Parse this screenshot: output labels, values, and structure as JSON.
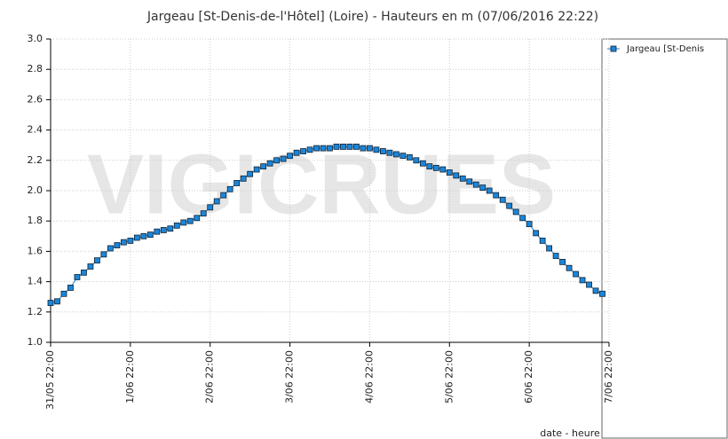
{
  "chart_data": {
    "type": "line",
    "title": "Jargeau [St-Denis-de-l'Hôtel] (Loire) - Hauteurs en m (07/06/2016 22:22)",
    "watermark": "VIGICRUES",
    "xlabel": "date - heure",
    "xlim": [
      0,
      168
    ],
    "xticks": [
      {
        "value": 0,
        "label": "31/05 22:00"
      },
      {
        "value": 24,
        "label": "1/06 22:00"
      },
      {
        "value": 48,
        "label": "2/06 22:00"
      },
      {
        "value": 72,
        "label": "3/06 22:00"
      },
      {
        "value": 96,
        "label": "4/06 22:00"
      },
      {
        "value": 120,
        "label": "5/06 22:00"
      },
      {
        "value": 144,
        "label": "6/06 22:00"
      },
      {
        "value": 168,
        "label": "7/06 22:00"
      }
    ],
    "ylim": [
      1,
      3
    ],
    "yticks": [
      {
        "value": 1,
        "label": "1.0"
      },
      1.2,
      1.4,
      1.6,
      1.8,
      {
        "value": 2,
        "label": "2.0"
      },
      2.2,
      2.4,
      2.6,
      2.8,
      {
        "value": 3,
        "label": "3.0"
      }
    ],
    "grid": true,
    "legend": "top-right",
    "x": [
      0,
      2,
      4,
      6,
      8,
      10,
      12,
      14,
      16,
      18,
      20,
      22,
      24,
      26,
      28,
      30,
      32,
      34,
      36,
      38,
      40,
      42,
      44,
      46,
      48,
      50,
      52,
      54,
      56,
      58,
      60,
      62,
      64,
      66,
      68,
      70,
      72,
      74,
      76,
      78,
      80,
      82,
      84,
      86,
      88,
      90,
      92,
      94,
      96,
      98,
      100,
      102,
      104,
      106,
      108,
      110,
      112,
      114,
      116,
      118,
      120,
      122,
      124,
      126,
      128,
      130,
      132,
      134,
      136,
      138,
      140,
      142,
      144,
      146,
      148,
      150,
      152,
      154,
      156,
      158,
      160,
      162,
      164,
      166
    ],
    "series": [
      {
        "name": "Jargeau [St-Denis",
        "color": "#1c86d9",
        "values": [
          1.26,
          1.27,
          1.32,
          1.36,
          1.43,
          1.46,
          1.5,
          1.54,
          1.58,
          1.62,
          1.64,
          1.66,
          1.67,
          1.69,
          1.7,
          1.71,
          1.73,
          1.74,
          1.75,
          1.77,
          1.79,
          1.8,
          1.82,
          1.85,
          1.89,
          1.93,
          1.97,
          2.01,
          2.05,
          2.08,
          2.11,
          2.14,
          2.16,
          2.18,
          2.2,
          2.21,
          2.23,
          2.25,
          2.26,
          2.27,
          2.28,
          2.28,
          2.28,
          2.29,
          2.29,
          2.29,
          2.29,
          2.28,
          2.28,
          2.27,
          2.26,
          2.25,
          2.24,
          2.23,
          2.22,
          2.2,
          2.18,
          2.16,
          2.15,
          2.14,
          2.12,
          2.1,
          2.08,
          2.06,
          2.04,
          2.02,
          2.0,
          1.97,
          1.94,
          1.9,
          1.86,
          1.82,
          1.78,
          1.72,
          1.67,
          1.62,
          1.57,
          1.53,
          1.49,
          1.45,
          1.41,
          1.38,
          1.34,
          1.32
        ]
      }
    ]
  }
}
